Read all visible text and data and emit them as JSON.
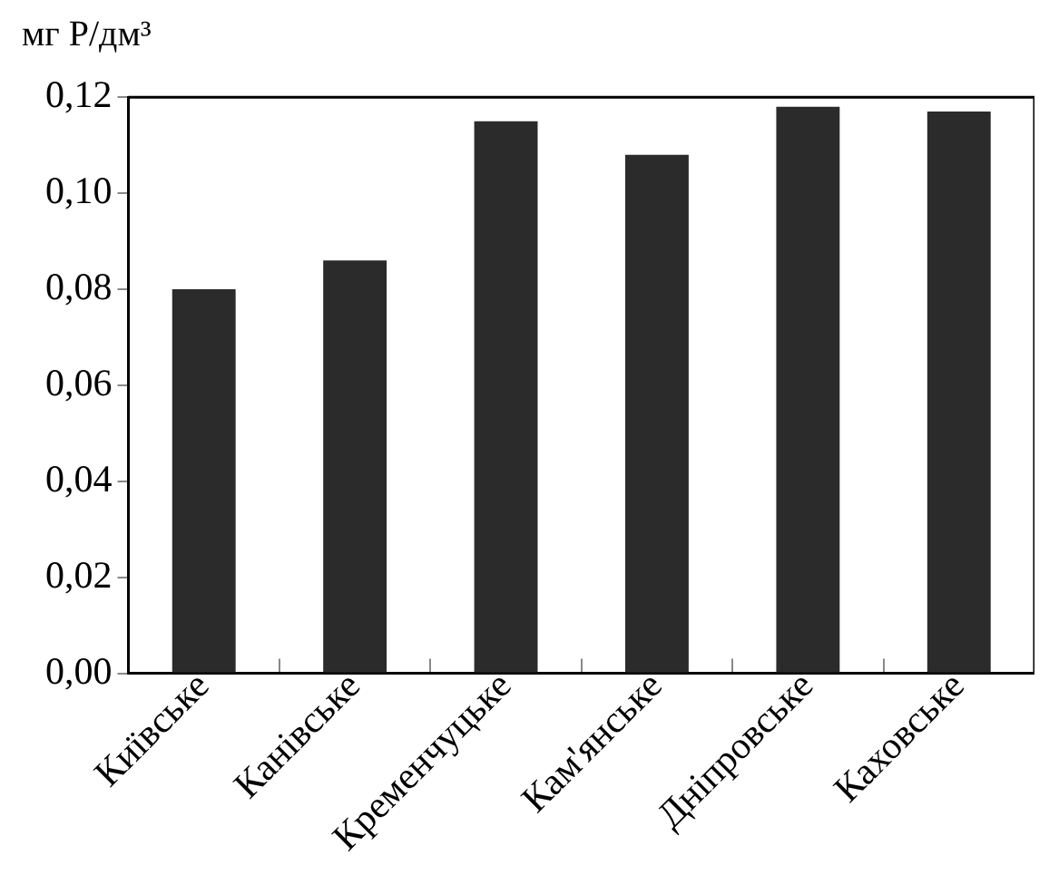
{
  "chart_data": {
    "type": "bar",
    "ylabel": "мг P/дм³",
    "categories": [
      "Київське",
      "Канівське",
      "Кременчуцьке",
      "Кам'янське",
      "Дніпровське",
      "Каховське"
    ],
    "values": [
      0.08,
      0.086,
      0.115,
      0.108,
      0.118,
      0.117
    ],
    "color": "#2b2b2b",
    "ylim": [
      0,
      0.12
    ],
    "yticks": [
      {
        "value": 0,
        "label": "0,00"
      },
      {
        "value": 0.02,
        "label": "0,02"
      },
      {
        "value": 0.04,
        "label": "0,04"
      },
      {
        "value": 0.06,
        "label": "0,06"
      },
      {
        "value": 0.08,
        "label": "0,08"
      },
      {
        "value": 0.1,
        "label": "0,10"
      },
      {
        "value": 0.12,
        "label": "0,12"
      }
    ],
    "grid": false
  }
}
